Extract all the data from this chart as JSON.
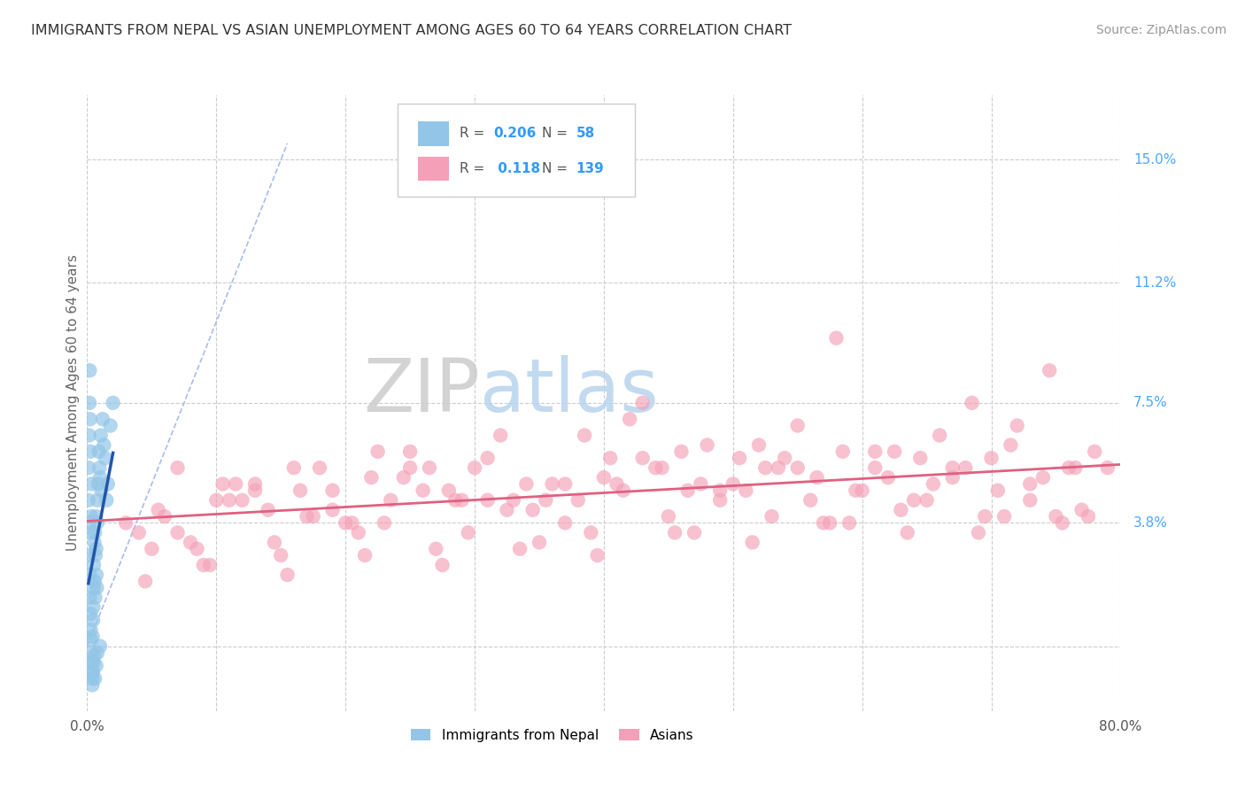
{
  "title": "IMMIGRANTS FROM NEPAL VS ASIAN UNEMPLOYMENT AMONG AGES 60 TO 64 YEARS CORRELATION CHART",
  "source": "Source: ZipAtlas.com",
  "ylabel": "Unemployment Among Ages 60 to 64 years",
  "xlim": [
    0.0,
    80.0
  ],
  "ylim": [
    -2.0,
    17.0
  ],
  "blue_R": 0.206,
  "blue_N": 58,
  "pink_R": 0.118,
  "pink_N": 139,
  "blue_color": "#92c5e8",
  "pink_color": "#f4a0b8",
  "blue_trend_color": "#2255aa",
  "pink_trend_color": "#e06080",
  "legend_label_blue": "Immigrants from Nepal",
  "legend_label_pink": "Asians",
  "watermark1": "ZIP",
  "watermark2": "atlas",
  "background_color": "#ffffff",
  "title_color": "#444444",
  "right_tick_color": "#4da6ff",
  "blue_scatter_x": [
    0.15,
    0.18,
    0.2,
    0.22,
    0.25,
    0.28,
    0.3,
    0.32,
    0.35,
    0.38,
    0.4,
    0.42,
    0.45,
    0.48,
    0.5,
    0.52,
    0.55,
    0.58,
    0.6,
    0.62,
    0.65,
    0.68,
    0.7,
    0.72,
    0.75,
    0.78,
    0.8,
    0.85,
    0.9,
    0.95,
    1.0,
    1.05,
    1.1,
    1.2,
    1.3,
    1.4,
    1.5,
    1.6,
    1.8,
    2.0,
    0.1,
    0.12,
    0.15,
    0.18,
    0.2,
    0.22,
    0.25,
    0.28,
    0.3,
    0.35,
    0.4,
    0.45,
    0.5,
    0.55,
    0.6,
    0.7,
    0.8,
    1.0
  ],
  "blue_scatter_y": [
    3.8,
    2.8,
    2.2,
    1.5,
    1.0,
    0.5,
    0.2,
    -0.2,
    -0.5,
    -0.8,
    -1.0,
    0.3,
    0.8,
    1.2,
    1.8,
    2.5,
    3.2,
    2.0,
    3.5,
    1.5,
    2.8,
    4.0,
    3.0,
    2.2,
    1.8,
    3.8,
    4.5,
    5.0,
    6.0,
    5.5,
    5.2,
    6.5,
    4.8,
    7.0,
    6.2,
    5.8,
    4.5,
    5.0,
    6.8,
    7.5,
    4.5,
    5.5,
    6.5,
    7.5,
    8.5,
    7.0,
    6.0,
    5.0,
    4.0,
    3.5,
    -1.2,
    -0.8,
    -0.5,
    -0.3,
    -1.0,
    -0.6,
    -0.2,
    0.0
  ],
  "pink_scatter_x": [
    3.0,
    5.5,
    7.0,
    8.5,
    10.0,
    11.5,
    13.0,
    14.5,
    16.0,
    17.5,
    19.0,
    20.5,
    22.0,
    23.5,
    25.0,
    26.5,
    28.0,
    29.5,
    31.0,
    32.5,
    34.0,
    35.5,
    37.0,
    38.5,
    40.0,
    41.5,
    43.0,
    44.5,
    46.0,
    47.5,
    49.0,
    50.5,
    52.0,
    53.5,
    55.0,
    56.5,
    58.0,
    59.5,
    61.0,
    62.5,
    64.0,
    65.5,
    67.0,
    68.5,
    70.0,
    71.5,
    73.0,
    74.5,
    76.0,
    77.5,
    4.0,
    6.0,
    8.0,
    10.5,
    12.0,
    14.0,
    16.5,
    18.0,
    20.0,
    22.5,
    24.5,
    26.0,
    28.5,
    30.0,
    32.0,
    34.5,
    36.0,
    38.0,
    40.5,
    42.0,
    44.0,
    46.5,
    48.0,
    50.0,
    52.5,
    54.0,
    56.0,
    58.5,
    60.0,
    62.0,
    64.5,
    66.0,
    68.0,
    70.5,
    72.0,
    74.0,
    76.5,
    78.0,
    5.0,
    9.0,
    15.0,
    21.0,
    27.0,
    33.0,
    39.0,
    45.0,
    51.0,
    57.0,
    63.0,
    69.0,
    75.0,
    11.0,
    17.0,
    23.0,
    29.0,
    35.0,
    41.0,
    47.0,
    53.0,
    59.0,
    65.0,
    71.0,
    77.0,
    7.0,
    13.0,
    19.0,
    25.0,
    31.0,
    37.0,
    43.0,
    49.0,
    55.0,
    61.0,
    67.0,
    73.0,
    79.0,
    4.5,
    9.5,
    15.5,
    21.5,
    27.5,
    33.5,
    39.5,
    45.5,
    51.5,
    57.5,
    63.5,
    69.5,
    75.5
  ],
  "pink_scatter_y": [
    3.8,
    4.2,
    3.5,
    3.0,
    4.5,
    5.0,
    4.8,
    3.2,
    5.5,
    4.0,
    4.2,
    3.8,
    5.2,
    4.5,
    6.0,
    5.5,
    4.8,
    3.5,
    5.8,
    4.2,
    5.0,
    4.5,
    3.8,
    6.5,
    5.2,
    4.8,
    7.5,
    5.5,
    6.0,
    5.0,
    4.5,
    5.8,
    6.2,
    5.5,
    6.8,
    5.2,
    9.5,
    4.8,
    5.5,
    6.0,
    4.5,
    5.0,
    5.5,
    7.5,
    5.8,
    6.2,
    5.0,
    8.5,
    5.5,
    4.0,
    3.5,
    4.0,
    3.2,
    5.0,
    4.5,
    4.2,
    4.8,
    5.5,
    3.8,
    6.0,
    5.2,
    4.8,
    4.5,
    5.5,
    6.5,
    4.2,
    5.0,
    4.5,
    5.8,
    7.0,
    5.5,
    4.8,
    6.2,
    5.0,
    5.5,
    5.8,
    4.5,
    6.0,
    4.8,
    5.2,
    5.8,
    6.5,
    5.5,
    4.8,
    6.8,
    5.2,
    5.5,
    6.0,
    3.0,
    2.5,
    2.8,
    3.5,
    3.0,
    4.5,
    3.5,
    4.0,
    4.8,
    3.8,
    4.2,
    3.5,
    4.0,
    4.5,
    4.0,
    3.8,
    4.5,
    3.2,
    5.0,
    3.5,
    4.0,
    3.8,
    4.5,
    4.0,
    4.2,
    5.5,
    5.0,
    4.8,
    5.5,
    4.5,
    5.0,
    5.8,
    4.8,
    5.5,
    6.0,
    5.2,
    4.5,
    5.5,
    2.0,
    2.5,
    2.2,
    2.8,
    2.5,
    3.0,
    2.8,
    3.5,
    3.2,
    3.8,
    3.5,
    4.0,
    3.8
  ]
}
